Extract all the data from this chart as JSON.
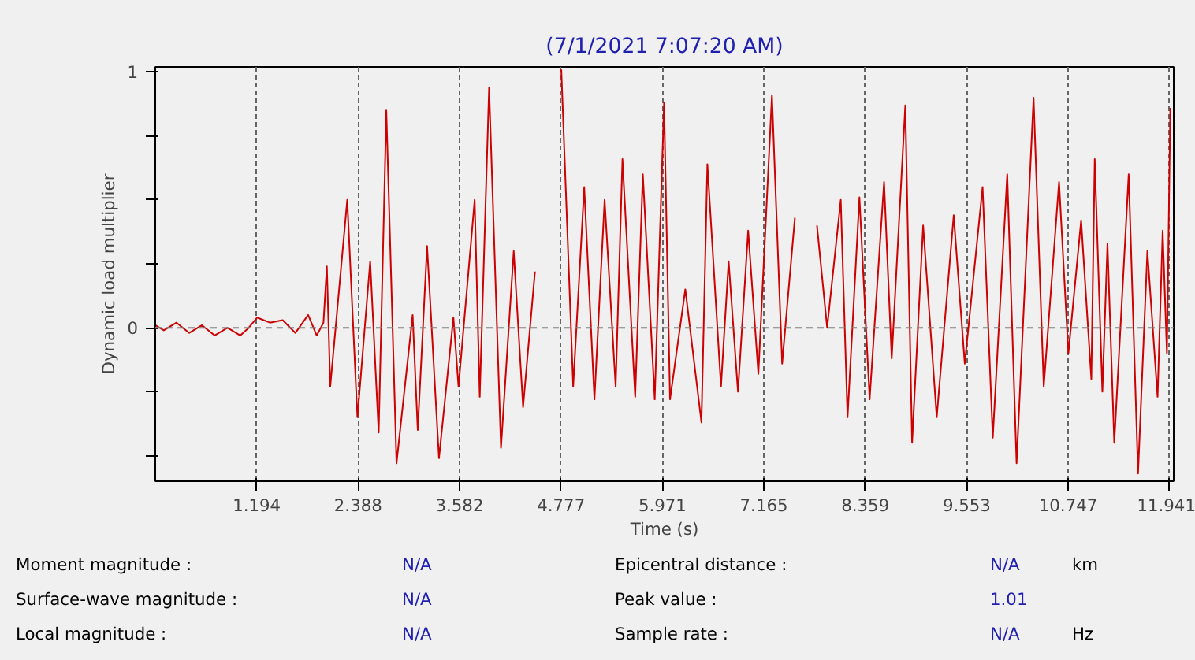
{
  "chart_data": {
    "type": "line",
    "title": "(7/1/2021 7:07:20 AM)",
    "xlabel": "Time (s)",
    "ylabel": "Dynamic load multiplier",
    "x": [
      0,
      0.1,
      0.25,
      0.4,
      0.55,
      0.7,
      0.85,
      1.0,
      1.1,
      1.2,
      1.35,
      1.5,
      1.65,
      1.8,
      1.9,
      1.98,
      2.02,
      2.06,
      2.26,
      2.38,
      2.53,
      2.63,
      2.72,
      2.84,
      3.03,
      3.09,
      3.2,
      3.34,
      3.51,
      3.57,
      3.76,
      3.82,
      3.93,
      4.07,
      4.22,
      4.33,
      4.47,
      4.63,
      4.78,
      4.92,
      5.05,
      5.17,
      5.29,
      5.42,
      5.5,
      5.65,
      5.74,
      5.88,
      5.99,
      6.06,
      6.24,
      6.43,
      6.5,
      6.66,
      6.75,
      6.86,
      6.98,
      7.1,
      7.26,
      7.38,
      7.53,
      7.63,
      7.79,
      7.91,
      8.07,
      8.15,
      8.29,
      8.41,
      8.58,
      8.67,
      8.83,
      8.91,
      9.04,
      9.2,
      9.4,
      9.53,
      9.74,
      9.86,
      10.03,
      10.14,
      10.34,
      10.46,
      10.64,
      10.75,
      10.9,
      11.02,
      11.06,
      11.15,
      11.21,
      11.29,
      11.46,
      11.57,
      11.68,
      11.8,
      11.86,
      11.91,
      11.95
    ],
    "series": [
      {
        "color": "#cc0000",
        "values": [
          0.01,
          -0.01,
          0.02,
          -0.02,
          0.01,
          -0.03,
          0.0,
          -0.03,
          0.0,
          0.04,
          0.02,
          0.03,
          -0.02,
          0.05,
          -0.03,
          0.02,
          0.24,
          -0.23,
          0.5,
          -0.35,
          0.26,
          -0.41,
          0.85,
          -0.53,
          0.05,
          -0.4,
          0.32,
          -0.51,
          0.04,
          -0.23,
          0.5,
          -0.27,
          0.94,
          -0.47,
          0.3,
          -0.31,
          0.22,
          null,
          1.01,
          -0.23,
          0.55,
          -0.28,
          0.5,
          -0.23,
          0.66,
          -0.27,
          0.6,
          -0.28,
          0.88,
          -0.28,
          0.15,
          -0.37,
          0.64,
          -0.23,
          0.26,
          -0.25,
          0.38,
          -0.18,
          0.91,
          -0.14,
          0.43,
          null,
          0.4,
          0.0,
          0.5,
          -0.35,
          0.51,
          -0.28,
          0.57,
          -0.12,
          0.87,
          -0.45,
          0.4,
          -0.35,
          0.44,
          -0.14,
          0.55,
          -0.43,
          0.6,
          -0.53,
          0.9,
          -0.23,
          0.57,
          -0.1,
          0.42,
          -0.2,
          0.66,
          -0.25,
          0.33,
          -0.45,
          0.6,
          -0.57,
          0.3,
          -0.27,
          0.38,
          -0.1,
          0.86
        ]
      }
    ],
    "xlim": [
      0,
      11.99
    ],
    "ylim": [
      -0.6,
      1.02
    ],
    "xticks": [
      1.194,
      2.388,
      3.582,
      4.777,
      5.971,
      7.165,
      8.359,
      9.553,
      10.747,
      11.941
    ],
    "yticks": [
      1,
      {
        "value": 0.75,
        "label": null
      },
      {
        "value": 0.5,
        "label": null
      },
      {
        "value": 0.25,
        "label": null
      },
      0,
      {
        "value": -0.25,
        "label": null
      },
      {
        "value": -0.5,
        "label": null
      }
    ],
    "grid": "x",
    "ref_lines": [
      {
        "axis": "y",
        "value": 0,
        "label": null,
        "color": "#808080",
        "line_style": "dashed"
      }
    ],
    "annotations": [
      "Moment magnitude :",
      "N/A",
      "Epicentral distance :",
      "N/A",
      "km",
      "Surface-wave magnitude :",
      "N/A",
      "Peak value :",
      "1.01",
      "Local magnitude :",
      "N/A",
      "Sample rate :",
      "N/A",
      "Hz"
    ]
  }
}
